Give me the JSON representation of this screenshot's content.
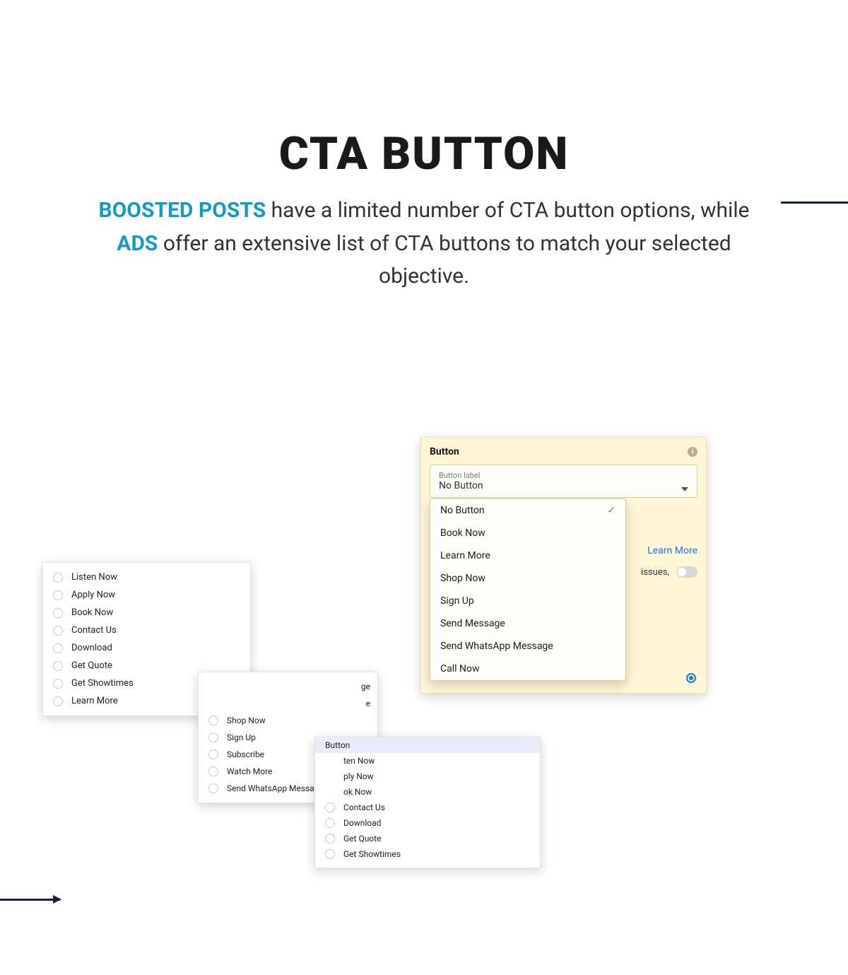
{
  "title": "CTA BUTTON",
  "subtitle": {
    "part1": "BOOSTED POSTS",
    "part2": "  have a limited number of CTA button options, while ",
    "part3": "ADS",
    "part4": " offer an extensive list of CTA buttons to match your selected objective."
  },
  "colors": {
    "accent": "#1599c6",
    "dark": "#14243e",
    "fbblue": "#1877f2",
    "cardbg": "#fef6d5"
  },
  "panel1": {
    "items": [
      "Listen Now",
      "Apply Now",
      "Book Now",
      "Contact Us",
      "Download",
      "Get Quote",
      "Get Showtimes",
      "Learn More"
    ]
  },
  "panel2": {
    "items_partial_top": [
      "ge",
      "e"
    ],
    "items": [
      "Shop Now",
      "Sign Up",
      "Subscribe",
      "Watch More",
      "Send WhatsApp Message"
    ]
  },
  "panel3": {
    "header": "Button",
    "items_partial": [
      "ten Now",
      "ply Now",
      "ok Now"
    ],
    "items": [
      "Contact Us",
      "Download",
      "Get Quote",
      "Get Showtimes"
    ]
  },
  "ads": {
    "header": "Button",
    "select_label": "Button label",
    "select_value": "No Button",
    "menu": [
      "No Button",
      "Book Now",
      "Learn More",
      "Shop Now",
      "Sign Up",
      "Send Message",
      "Send WhatsApp Message",
      "Call Now"
    ],
    "selected_index": 0,
    "learn_more": "Learn More",
    "issues_text": "issues,"
  }
}
